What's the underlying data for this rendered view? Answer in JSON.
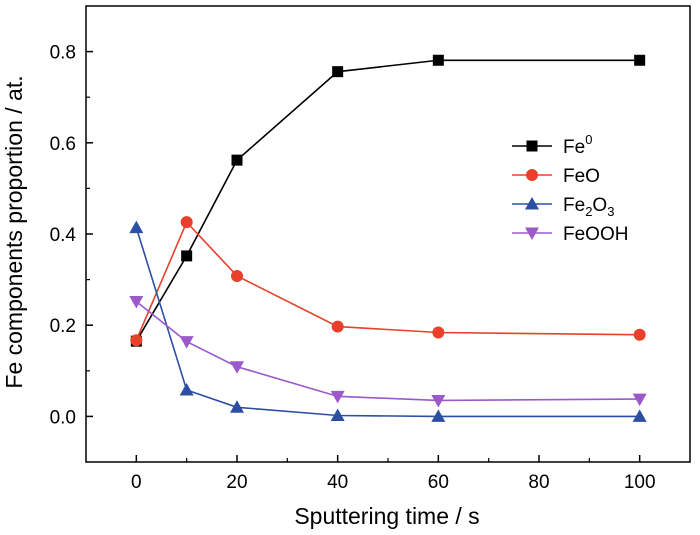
{
  "chart_data": {
    "type": "line",
    "title": "",
    "xlabel": "Sputtering time / s",
    "ylabel": "Fe components proportion / at.",
    "xlim": [
      -10,
      110
    ],
    "ylim": [
      -0.1,
      0.9
    ],
    "xticks": [
      0,
      20,
      40,
      60,
      80,
      100
    ],
    "xtick_labels": [
      "0",
      "20",
      "40",
      "60",
      "80",
      "100"
    ],
    "yticks": [
      0.0,
      0.2,
      0.4,
      0.6,
      0.8
    ],
    "ytick_labels": [
      "0.0",
      "0.2",
      "0.4",
      "0.6",
      "0.8"
    ],
    "grid": false,
    "legend_position": "right",
    "x": [
      0,
      10,
      20,
      40,
      60,
      100
    ],
    "series": [
      {
        "name": "Fe0",
        "legend": {
          "base": "Fe",
          "sup": "0"
        },
        "color": "#000000",
        "marker": "square",
        "values": [
          0.165,
          0.352,
          0.562,
          0.756,
          0.781,
          0.781
        ]
      },
      {
        "name": "FeO",
        "legend": {
          "base": "FeO"
        },
        "color": "#e8402a",
        "marker": "circle",
        "values": [
          0.167,
          0.426,
          0.308,
          0.197,
          0.184,
          0.179
        ]
      },
      {
        "name": "Fe2O3",
        "legend": {
          "base": "Fe",
          "sub1": "2",
          "mid": "O",
          "sub2": "3"
        },
        "color": "#2c4fa3",
        "marker": "triangle-up",
        "values": [
          0.414,
          0.058,
          0.02,
          0.002,
          0.0,
          0.0
        ]
      },
      {
        "name": "FeOOH",
        "legend": {
          "base": "FeOOH"
        },
        "color": "#9b59c9",
        "marker": "triangle-down",
        "values": [
          0.252,
          0.164,
          0.109,
          0.044,
          0.035,
          0.038
        ]
      }
    ]
  }
}
